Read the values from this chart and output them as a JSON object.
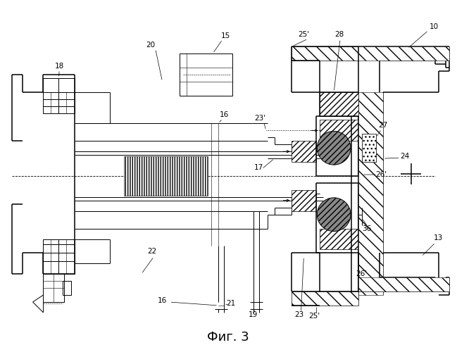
{
  "fig_label": "Фиг. 3",
  "background_color": "#ffffff"
}
